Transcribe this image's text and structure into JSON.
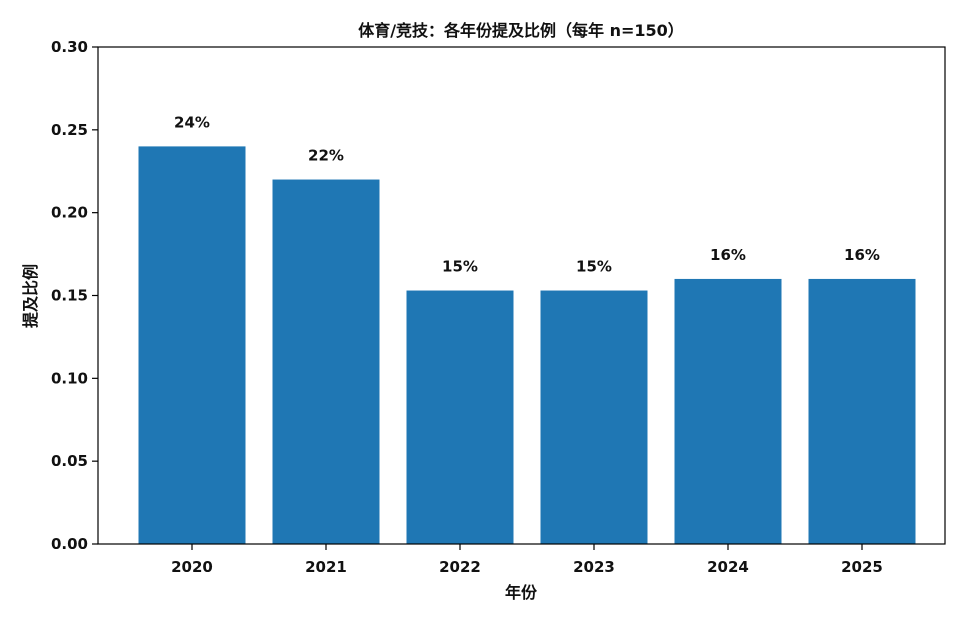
{
  "chart_data": {
    "type": "bar",
    "title": "体育/竞技：各年份提及比例（每年 n=150）",
    "xlabel": "年份",
    "ylabel": "提及比例",
    "categories": [
      "2020",
      "2021",
      "2022",
      "2023",
      "2024",
      "2025"
    ],
    "values": [
      0.24,
      0.22,
      0.153,
      0.153,
      0.16,
      0.16
    ],
    "data_labels": [
      "24%",
      "22%",
      "15%",
      "15%",
      "16%",
      "16%"
    ],
    "ylim": [
      0,
      0.3
    ],
    "yticks": [
      0.0,
      0.05,
      0.1,
      0.15,
      0.2,
      0.25,
      0.3
    ],
    "ytick_labels": [
      "0.00",
      "0.05",
      "0.10",
      "0.15",
      "0.20",
      "0.25",
      "0.30"
    ],
    "grid": false,
    "legend": "none",
    "bar_color": "#1f77b4"
  }
}
